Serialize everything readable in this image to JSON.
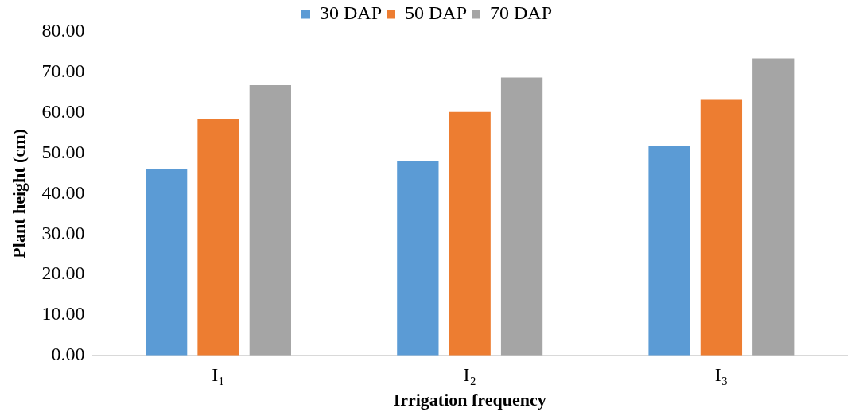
{
  "chart_data": {
    "type": "bar",
    "xlabel": "Irrigation frequency",
    "ylabel": "Plant height (cm)",
    "categories": [
      "I₁",
      "I₂",
      "I₃"
    ],
    "series": [
      {
        "name": "30 DAP",
        "color": "#5b9bd5",
        "values": [
          46.0,
          48.1,
          51.7
        ]
      },
      {
        "name": "50 DAP",
        "color": "#ed7d31",
        "values": [
          58.5,
          60.2,
          63.2
        ]
      },
      {
        "name": "70 DAP",
        "color": "#a5a5a5",
        "values": [
          66.8,
          68.7,
          73.4
        ]
      }
    ],
    "ylim": [
      0,
      80
    ],
    "yticks": [
      {
        "value": 0,
        "label": "0.00"
      },
      {
        "value": 10,
        "label": "10.00"
      },
      {
        "value": 20,
        "label": "20.00"
      },
      {
        "value": 30,
        "label": "30.00"
      },
      {
        "value": 40,
        "label": "40.00"
      },
      {
        "value": 50,
        "label": "50.00"
      },
      {
        "value": 60,
        "label": "60.00"
      },
      {
        "value": 70,
        "label": "70.00"
      },
      {
        "value": 80,
        "label": "80.00"
      }
    ],
    "grid": false,
    "legend": "top"
  }
}
